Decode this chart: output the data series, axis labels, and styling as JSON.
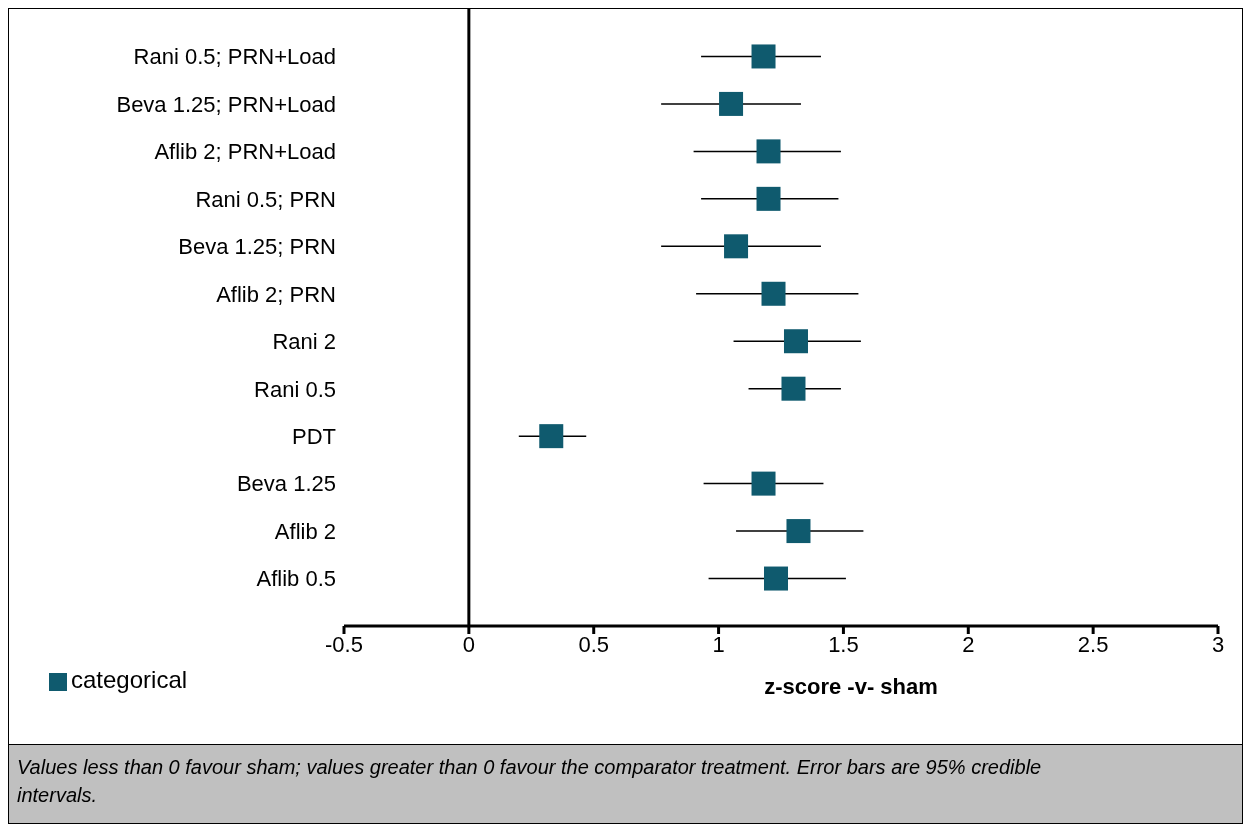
{
  "chart_data": {
    "type": "scatter",
    "orientation": "horizontal",
    "categories": [
      "Rani 0.5; PRN+Load",
      "Beva 1.25; PRN+Load",
      "Aflib 2; PRN+Load",
      "Rani 0.5; PRN",
      "Beva 1.25; PRN",
      "Aflib 2; PRN",
      "Rani 2",
      "Rani 0.5",
      "PDT",
      "Beva 1.25",
      "Aflib 2",
      "Aflib 0.5"
    ],
    "series": [
      {
        "name": "categorical",
        "color": "#0f5a6e",
        "values": [
          1.18,
          1.05,
          1.2,
          1.2,
          1.07,
          1.22,
          1.31,
          1.3,
          0.33,
          1.18,
          1.32,
          1.23
        ],
        "errors": [
          [
            0.93,
            1.41
          ],
          [
            0.77,
            1.33
          ],
          [
            0.9,
            1.49
          ],
          [
            0.93,
            1.48
          ],
          [
            0.77,
            1.41
          ],
          [
            0.91,
            1.56
          ],
          [
            1.06,
            1.57
          ],
          [
            1.12,
            1.49
          ],
          [
            0.2,
            0.47
          ],
          [
            0.94,
            1.42
          ],
          [
            1.07,
            1.58
          ],
          [
            0.96,
            1.51
          ]
        ]
      }
    ],
    "xlim": [
      -0.5,
      3
    ],
    "xticks": [
      -0.5,
      0,
      0.5,
      1,
      1.5,
      2,
      2.5,
      3
    ],
    "xlabel": "z-score -v- sham",
    "ref_lines": [
      {
        "axis": "x",
        "value": 0,
        "color": "#000000"
      }
    ],
    "legend": "bottom left",
    "marker": "square",
    "grid": false,
    "annotations": [
      "Values less than 0 favour sham; values greater than 0 favour the comparator treatment. Error bars are 95% credible intervals."
    ]
  }
}
